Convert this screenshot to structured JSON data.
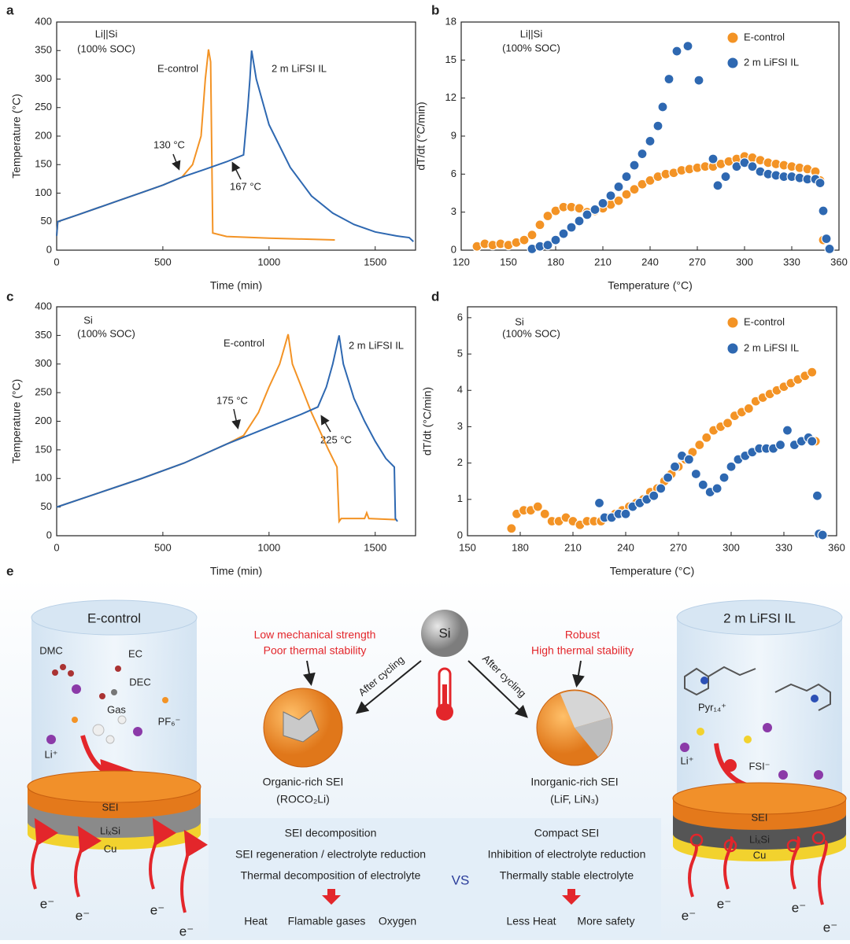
{
  "chart_data": [
    {
      "type": "line",
      "label": "a",
      "x_label": "Time (min)",
      "y_label": "Temperature (°C)",
      "xlim": [
        0,
        1690
      ],
      "xticks": [
        0,
        500,
        1000,
        1500
      ],
      "ylim": [
        0,
        400
      ],
      "yticks": [
        0,
        50,
        100,
        150,
        200,
        250,
        300,
        350,
        400
      ],
      "annotations": [
        "Li||Si",
        "(100% SOC)",
        "130 °C",
        "167 °C"
      ],
      "series": [
        {
          "name": "E-control",
          "color": "#f39325",
          "x": [
            0,
            5,
            100,
            200,
            300,
            400,
            500,
            590,
            640,
            680,
            700,
            715,
            725,
            735,
            800,
            1000,
            1310
          ],
          "values": [
            25,
            50,
            62,
            75,
            88,
            101,
            114,
            128,
            150,
            200,
            300,
            352,
            330,
            30,
            24,
            21,
            18
          ]
        },
        {
          "name": "2 m LiFSI IL",
          "color": "#2e68b1",
          "x": [
            0,
            5,
            100,
            200,
            300,
            400,
            500,
            590,
            700,
            800,
            880,
            900,
            910,
            918,
            940,
            1000,
            1100,
            1200,
            1300,
            1400,
            1500,
            1600,
            1660,
            1680
          ],
          "values": [
            25,
            50,
            62,
            75,
            88,
            101,
            114,
            128,
            142,
            155,
            167,
            250,
            300,
            350,
            300,
            220,
            145,
            95,
            65,
            45,
            32,
            25,
            22,
            15
          ]
        }
      ]
    },
    {
      "type": "scatter",
      "label": "b",
      "x_label": "Temperature (°C)",
      "y_label": "dT/dt (°C/min)",
      "legend": "upper right",
      "xlim": [
        120,
        360
      ],
      "xticks": [
        120,
        150,
        180,
        210,
        240,
        270,
        300,
        330,
        360
      ],
      "ylim": [
        0,
        18
      ],
      "yticks": [
        0,
        3,
        6,
        9,
        12,
        15,
        18
      ],
      "annotations": [
        "Li||Si",
        "(100% SOC)"
      ],
      "series": [
        {
          "name": "E-control",
          "color": "#f39325",
          "x": [
            130,
            135,
            140,
            145,
            150,
            155,
            160,
            165,
            170,
            175,
            180,
            185,
            190,
            195,
            200,
            205,
            210,
            215,
            220,
            225,
            230,
            235,
            240,
            245,
            250,
            255,
            260,
            265,
            270,
            275,
            280,
            285,
            290,
            295,
            300,
            305,
            310,
            315,
            320,
            325,
            330,
            335,
            340,
            345,
            348,
            350
          ],
          "values": [
            0.3,
            0.5,
            0.4,
            0.5,
            0.4,
            0.6,
            0.8,
            1.2,
            2,
            2.7,
            3.1,
            3.4,
            3.4,
            3.3,
            3.0,
            3.1,
            3.3,
            3.6,
            3.9,
            4.4,
            4.8,
            5.2,
            5.5,
            5.8,
            6.0,
            6.1,
            6.3,
            6.4,
            6.5,
            6.6,
            6.6,
            6.8,
            7.0,
            7.2,
            7.4,
            7.3,
            7.1,
            6.9,
            6.8,
            6.7,
            6.6,
            6.5,
            6.4,
            6.2,
            5.5,
            0.8
          ]
        },
        {
          "name": "2 m LiFSI IL",
          "color": "#2e68b1",
          "x": [
            165,
            170,
            175,
            180,
            185,
            190,
            195,
            200,
            205,
            210,
            215,
            220,
            225,
            230,
            235,
            240,
            245,
            248,
            252,
            257,
            264,
            271,
            280,
            283,
            288,
            295,
            300,
            305,
            310,
            315,
            320,
            325,
            330,
            335,
            340,
            345,
            348,
            350,
            352,
            354
          ],
          "values": [
            0.1,
            0.3,
            0.4,
            0.8,
            1.3,
            1.8,
            2.3,
            2.8,
            3.2,
            3.7,
            4.3,
            5.0,
            5.8,
            6.7,
            7.6,
            8.6,
            9.8,
            11.3,
            13.5,
            15.7,
            16.1,
            13.4,
            7.2,
            5.1,
            5.8,
            6.6,
            6.9,
            6.6,
            6.2,
            6.0,
            5.9,
            5.8,
            5.8,
            5.7,
            5.6,
            5.6,
            5.3,
            3.1,
            0.9,
            0.1
          ]
        }
      ]
    },
    {
      "type": "line",
      "label": "c",
      "x_label": "Time (min)",
      "y_label": "Temperature (°C)",
      "xlim": [
        0,
        1690
      ],
      "xticks": [
        0,
        500,
        1000,
        1500
      ],
      "ylim": [
        0,
        400
      ],
      "yticks": [
        0,
        50,
        100,
        150,
        200,
        250,
        300,
        350,
        400
      ],
      "annotations": [
        "Si",
        "(100% SOC)",
        "175 °C",
        "225 °C"
      ],
      "series": [
        {
          "name": "E-control",
          "color": "#f39325",
          "x": [
            0,
            200,
            400,
            600,
            800,
            880,
            950,
            1000,
            1050,
            1090,
            1110,
            1200,
            1280,
            1320,
            1330,
            1340,
            1450,
            1460,
            1470,
            1600
          ],
          "values": [
            50,
            75,
            100,
            127,
            160,
            175,
            215,
            260,
            300,
            352,
            300,
            215,
            150,
            120,
            25,
            30,
            30,
            40,
            30,
            28
          ]
        },
        {
          "name": "2 m LiFSI IL",
          "color": "#2e68b1",
          "x": [
            0,
            200,
            400,
            600,
            800,
            1000,
            1150,
            1230,
            1270,
            1300,
            1330,
            1350,
            1400,
            1450,
            1500,
            1550,
            1590,
            1595,
            1605
          ],
          "values": [
            50,
            75,
            100,
            127,
            160,
            190,
            212,
            225,
            260,
            300,
            350,
            300,
            240,
            200,
            165,
            135,
            120,
            30,
            25
          ]
        }
      ]
    },
    {
      "type": "scatter",
      "label": "d",
      "x_label": "Temperature (°C)",
      "y_label": "dT/dt (°C/min)",
      "legend": "upper right",
      "xlim": [
        150,
        360
      ],
      "xticks": [
        150,
        180,
        210,
        240,
        270,
        300,
        330,
        360
      ],
      "ylim": [
        0,
        6.3
      ],
      "yticks": [
        0,
        1,
        2,
        3,
        4,
        5,
        6
      ],
      "annotations": [
        "Si",
        "(100% SOC)"
      ],
      "series": [
        {
          "name": "E-control",
          "color": "#f39325",
          "x": [
            175,
            178,
            182,
            186,
            190,
            194,
            198,
            202,
            206,
            210,
            214,
            218,
            222,
            226,
            230,
            234,
            238,
            242,
            246,
            250,
            254,
            258,
            262,
            266,
            270,
            274,
            278,
            282,
            286,
            290,
            294,
            298,
            302,
            306,
            310,
            314,
            318,
            322,
            326,
            330,
            334,
            338,
            342,
            346,
            348
          ],
          "values": [
            0.2,
            0.6,
            0.7,
            0.7,
            0.8,
            0.6,
            0.4,
            0.4,
            0.5,
            0.4,
            0.3,
            0.4,
            0.4,
            0.4,
            0.5,
            0.6,
            0.7,
            0.8,
            0.9,
            1.0,
            1.2,
            1.3,
            1.5,
            1.7,
            1.9,
            2.1,
            2.3,
            2.5,
            2.7,
            2.9,
            3.0,
            3.1,
            3.3,
            3.4,
            3.5,
            3.7,
            3.8,
            3.9,
            4.0,
            4.1,
            4.2,
            4.3,
            4.4,
            4.5,
            2.6
          ]
        },
        {
          "name": "2 m LiFSI IL",
          "color": "#2e68b1",
          "x": [
            225,
            228,
            232,
            236,
            240,
            244,
            248,
            252,
            256,
            260,
            264,
            268,
            272,
            276,
            280,
            284,
            288,
            292,
            296,
            300,
            304,
            308,
            312,
            316,
            320,
            324,
            328,
            332,
            336,
            340,
            344,
            346,
            349,
            350,
            352
          ],
          "values": [
            0.9,
            0.5,
            0.5,
            0.6,
            0.6,
            0.8,
            0.9,
            1.0,
            1.1,
            1.3,
            1.6,
            1.9,
            2.2,
            2.1,
            1.7,
            1.4,
            1.2,
            1.3,
            1.6,
            1.9,
            2.1,
            2.2,
            2.3,
            2.4,
            2.4,
            2.4,
            2.5,
            2.9,
            2.5,
            2.6,
            2.7,
            2.6,
            1.1,
            0.05,
            0.02
          ]
        }
      ]
    }
  ],
  "diagram": {
    "label": "e",
    "left": {
      "title": "E-control",
      "molecules": [
        "DMC",
        "EC",
        "DEC",
        "Gas",
        "PF₆⁻",
        "Li⁺"
      ],
      "layers": [
        "SEI",
        "LiₓSi",
        "Cu"
      ],
      "electrons": [
        "e⁻",
        "e⁻",
        "e⁻",
        "e⁻"
      ]
    },
    "right": {
      "title": "2 m LiFSI IL",
      "molecules": [
        "Pyr₁₄⁺",
        "Li⁺",
        "FSI⁻"
      ],
      "layers": [
        "SEI",
        "LiₓSi",
        "Cu"
      ],
      "electrons": [
        "e⁻",
        "e⁻",
        "e⁻",
        "e⁻"
      ]
    },
    "center": {
      "core": "Si",
      "arrow_left": "After cycling",
      "arrow_right": "After cycling",
      "left_props": [
        "Low mechanical strength",
        "Poor thermal stability"
      ],
      "right_props": [
        "Robust",
        "High thermal stability"
      ],
      "left_sei": [
        "Organic-rich SEI",
        "(ROCO₂Li)"
      ],
      "right_sei": [
        "Inorganic-rich SEI",
        "(LiF, LiN₃)"
      ]
    },
    "comparison": {
      "left": [
        "SEI decomposition",
        "SEI regeneration / electrolyte reduction",
        "Thermal  decomposition of electrolyte"
      ],
      "vs": "VS",
      "right": [
        "Compact SEI",
        "Inhibition of electrolyte reduction",
        "Thermally stable electrolyte"
      ],
      "left_outcomes": [
        "Heat",
        "Flamable gases",
        "Oxygen"
      ],
      "right_outcomes": [
        "Less Heat",
        "More safety"
      ]
    }
  }
}
